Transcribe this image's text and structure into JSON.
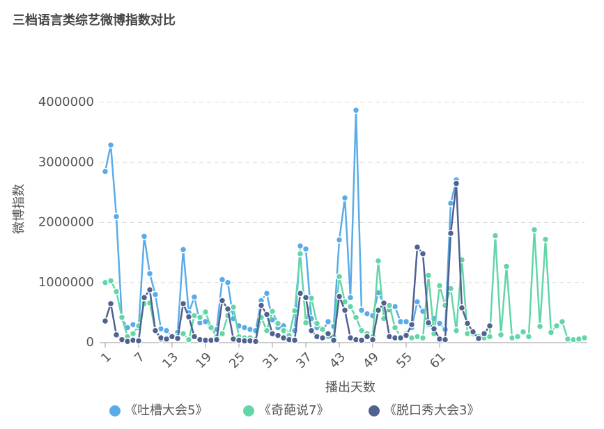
{
  "chart_data": {
    "type": "line",
    "title": "三档语言类综艺微博指数对比",
    "xlabel": "播出天数",
    "ylabel": "微博指数",
    "x": [
      1,
      2,
      3,
      4,
      5,
      6,
      7,
      8,
      9,
      10,
      11,
      12,
      13,
      14,
      15,
      16,
      17,
      18,
      19,
      20,
      21,
      22,
      23,
      24,
      25,
      26,
      27,
      28,
      29,
      30,
      31,
      32,
      33,
      34,
      35,
      36,
      37,
      38,
      39,
      40,
      41,
      42,
      43,
      44,
      45,
      46,
      47,
      48,
      49,
      50,
      51,
      52,
      53,
      54,
      55,
      56,
      57,
      58,
      59,
      60,
      61,
      62,
      63,
      64,
      65,
      66,
      67,
      68,
      69,
      70,
      71,
      72,
      73,
      74,
      75,
      76,
      77,
      78,
      79,
      80,
      81,
      82,
      83,
      84,
      85,
      86,
      87
    ],
    "xlim": [
      1,
      87
    ],
    "xticks": [
      1,
      7,
      13,
      19,
      25,
      31,
      37,
      43,
      49,
      55,
      61
    ],
    "ylim": [
      0,
      4000000
    ],
    "yticks": [
      0,
      1000000,
      2000000,
      3000000,
      4000000
    ],
    "grid": true,
    "legend": "bottom",
    "series": [
      {
        "name": "《吐槽大会5》",
        "color": "#5aace8",
        "values": [
          2850000,
          3290000,
          2100000,
          400000,
          250000,
          300000,
          250000,
          1770000,
          1150000,
          800000,
          230000,
          200000,
          100000,
          170000,
          1550000,
          500000,
          760000,
          330000,
          350000,
          250000,
          220000,
          1050000,
          1000000,
          400000,
          280000,
          250000,
          220000,
          200000,
          700000,
          820000,
          380000,
          250000,
          280000,
          150000,
          200000,
          1610000,
          1560000,
          400000,
          250000,
          200000,
          350000,
          270000,
          1710000,
          2410000,
          750000,
          3870000,
          540000,
          480000,
          450000,
          830000,
          650000,
          550000,
          600000,
          350000,
          350000,
          250000,
          680000,
          520000,
          300000,
          400000,
          320000,
          220000,
          2320000,
          2710000,
          null,
          null,
          null,
          null,
          null,
          null,
          null,
          null,
          null,
          null,
          null,
          null,
          null,
          null,
          null,
          null,
          null,
          null,
          null,
          null,
          null,
          null,
          null
        ]
      },
      {
        "name": "《奇葩说7》",
        "color": "#63d6a8",
        "values": [
          1000000,
          1030000,
          850000,
          420000,
          100000,
          150000,
          280000,
          650000,
          660000,
          200000,
          50000,
          80000,
          100000,
          100000,
          150000,
          50000,
          450000,
          420000,
          510000,
          250000,
          100000,
          150000,
          450000,
          590000,
          100000,
          80000,
          80000,
          50000,
          420000,
          200000,
          520000,
          320000,
          200000,
          120000,
          530000,
          1480000,
          330000,
          740000,
          320000,
          220000,
          100000,
          100000,
          1100000,
          680000,
          600000,
          420000,
          200000,
          150000,
          100000,
          1360000,
          400000,
          620000,
          250000,
          100000,
          150000,
          80000,
          100000,
          80000,
          1120000,
          150000,
          950000,
          620000,
          900000,
          200000,
          1380000,
          150000,
          150000,
          100000,
          80000,
          100000,
          1780000,
          130000,
          1270000,
          80000,
          100000,
          180000,
          100000,
          1880000,
          270000,
          1720000,
          170000,
          280000,
          350000,
          60000,
          50000,
          60000,
          80000
        ]
      },
      {
        "name": "《脱口秀大会3》",
        "color": "#4f6290",
        "values": [
          360000,
          650000,
          130000,
          50000,
          20000,
          40000,
          30000,
          750000,
          880000,
          200000,
          80000,
          60000,
          100000,
          70000,
          650000,
          430000,
          100000,
          50000,
          40000,
          40000,
          50000,
          700000,
          560000,
          60000,
          40000,
          30000,
          30000,
          20000,
          620000,
          470000,
          150000,
          120000,
          80000,
          50000,
          40000,
          820000,
          750000,
          200000,
          100000,
          80000,
          150000,
          40000,
          770000,
          540000,
          80000,
          50000,
          40000,
          100000,
          50000,
          540000,
          660000,
          100000,
          80000,
          80000,
          120000,
          300000,
          1590000,
          1480000,
          330000,
          230000,
          60000,
          50000,
          1820000,
          2650000,
          580000,
          320000,
          180000,
          70000,
          150000,
          280000,
          null,
          null,
          null,
          null,
          null,
          null,
          null,
          null,
          null,
          null,
          null,
          null,
          null,
          null,
          null,
          null,
          null
        ]
      }
    ]
  }
}
